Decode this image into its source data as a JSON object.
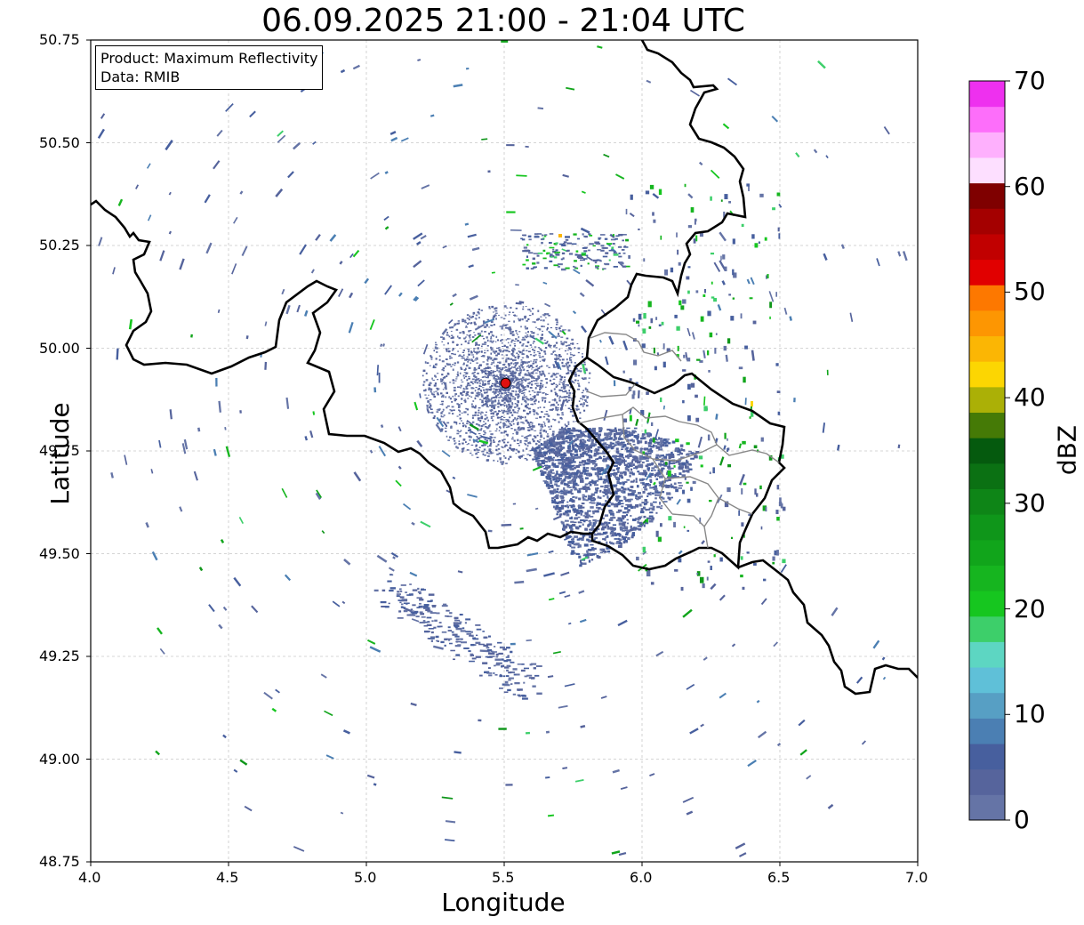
{
  "title": "06.09.2025 21:00 - 21:04 UTC",
  "info": {
    "product": "Product: Maximum Reflectivity",
    "data": "Data: RMIB"
  },
  "axes": {
    "xlabel": "Longitude",
    "ylabel": "Latitude",
    "xlim": [
      4.0,
      7.0
    ],
    "ylim": [
      48.75,
      50.75
    ],
    "xticks": [
      "4.0",
      "4.5",
      "5.0",
      "5.5",
      "6.0",
      "6.5",
      "7.0"
    ],
    "yticks": [
      "50.75",
      "50.50",
      "50.25",
      "50.00",
      "49.75",
      "49.50",
      "49.25",
      "49.00",
      "48.75"
    ],
    "grid": true
  },
  "radar_site": {
    "lon": 5.505,
    "lat": 49.915
  },
  "colorbar": {
    "label": "dBZ",
    "range": [
      0,
      70
    ],
    "ticks": [
      "70",
      "60",
      "50",
      "40",
      "30",
      "20",
      "10",
      "0"
    ],
    "colors": [
      "#6574a6",
      "#56649c",
      "#475f9e",
      "#4b7fb3",
      "#579fc4",
      "#5fc0d8",
      "#5dd6c2",
      "#3dcf6a",
      "#16c61f",
      "#16b51f",
      "#11a51b",
      "#0f961a",
      "#0e8517",
      "#0b7113",
      "#055a0e",
      "#457a06",
      "#abb006",
      "#fcd602",
      "#fbb604",
      "#fd9602",
      "#fd7800",
      "#e10000",
      "#c10000",
      "#a40000",
      "#7f0000",
      "#fddfff",
      "#feb0fd",
      "#fd6efa",
      "#ee30ef"
    ]
  }
}
